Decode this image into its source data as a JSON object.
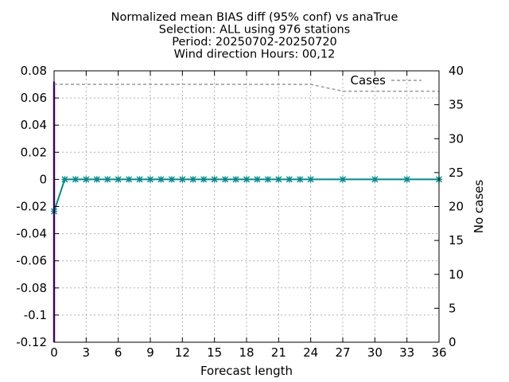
{
  "chart_data": {
    "type": "line",
    "title_lines": [
      "Normalized mean BIAS diff (95% conf) vs anaTrue",
      "Selection: ALL using   976 stations",
      "Period: 20250702-20250720",
      "Wind direction   Hours: 00,12"
    ],
    "xlabel": "Forecast length",
    "ylabel": "",
    "y2label": "No cases",
    "xlim": [
      0,
      36
    ],
    "ylim": [
      -0.12,
      0.08
    ],
    "y2lim": [
      0,
      40
    ],
    "x_ticks": [
      0,
      3,
      6,
      9,
      12,
      15,
      18,
      21,
      24,
      27,
      30,
      33,
      36
    ],
    "y_ticks": [
      -0.12,
      -0.1,
      -0.08,
      -0.06,
      -0.04,
      -0.02,
      0,
      0.02,
      0.04,
      0.06,
      0.08
    ],
    "y_tick_labels": [
      "-0.12",
      "-0.1",
      "-0.08",
      "-0.06",
      "-0.04",
      "-0.02",
      "0",
      "0.02",
      "0.04",
      "0.06",
      "0.08"
    ],
    "y2_ticks": [
      0,
      5,
      10,
      15,
      20,
      25,
      30,
      35,
      40
    ],
    "grid": true,
    "legend": {
      "position": "top-right",
      "entries": [
        "Cases"
      ]
    },
    "series": [
      {
        "role": "bias",
        "color": "#008b8b",
        "marker": "asterisk",
        "x": [
          0,
          1,
          2,
          3,
          4,
          5,
          6,
          7,
          8,
          9,
          10,
          11,
          12,
          13,
          14,
          15,
          16,
          17,
          18,
          19,
          20,
          21,
          22,
          23,
          24,
          27,
          30,
          33,
          36
        ],
        "y": [
          -0.0235,
          0,
          0,
          0,
          0,
          0,
          0,
          0,
          0,
          0,
          0,
          0,
          0,
          0,
          0,
          0,
          0,
          0,
          0,
          0,
          0,
          0,
          0,
          0,
          0,
          0,
          0,
          0,
          0
        ]
      },
      {
        "role": "confidence-interval",
        "color": "#6a0dad",
        "x": [
          0
        ],
        "y_low": [
          -0.12
        ],
        "y_high": [
          0.072
        ]
      },
      {
        "name": "Cases",
        "axis": "y2",
        "color": "#999999",
        "dashed": true,
        "x": [
          0,
          1,
          2,
          3,
          4,
          5,
          6,
          7,
          8,
          9,
          10,
          11,
          12,
          13,
          14,
          15,
          16,
          17,
          18,
          19,
          20,
          21,
          22,
          23,
          24,
          27,
          30,
          33,
          36
        ],
        "y": [
          38,
          38,
          38,
          38,
          38,
          38,
          38,
          38,
          38,
          38,
          38,
          38,
          38,
          38,
          38,
          38,
          38,
          38,
          38,
          38,
          38,
          38,
          38,
          38,
          38,
          37,
          37,
          37,
          37
        ]
      }
    ]
  }
}
